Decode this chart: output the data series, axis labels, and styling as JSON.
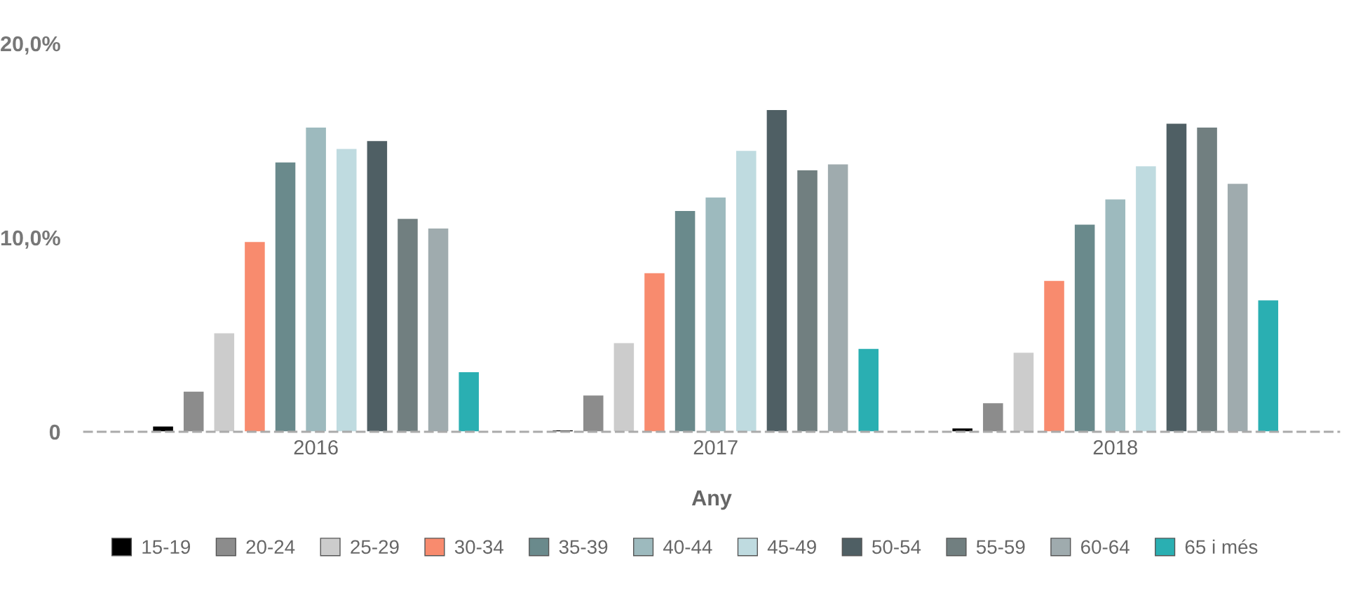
{
  "chart_data": {
    "type": "bar",
    "categories": [
      "2016",
      "2017",
      "2018"
    ],
    "xlabel": "Any",
    "series": [
      {
        "name": "15-19",
        "color": "#000000",
        "values": [
          0.3,
          0.1,
          0.2
        ]
      },
      {
        "name": "20-24",
        "color": "#8c8c8c",
        "values": [
          2.1,
          1.9,
          1.5
        ]
      },
      {
        "name": "25-29",
        "color": "#cccccc",
        "values": [
          5.1,
          4.6,
          4.1
        ]
      },
      {
        "name": "30-34",
        "color": "#f88b6e",
        "values": [
          9.8,
          8.2,
          7.8
        ]
      },
      {
        "name": "35-39",
        "color": "#6a8a8c",
        "values": [
          13.9,
          11.4,
          10.7
        ]
      },
      {
        "name": "40-44",
        "color": "#9dbabe",
        "values": [
          15.7,
          12.1,
          12.0
        ]
      },
      {
        "name": "45-49",
        "color": "#bfdbe0",
        "values": [
          14.6,
          14.5,
          13.7
        ]
      },
      {
        "name": "50-54",
        "color": "#4f5f64",
        "values": [
          15.0,
          16.6,
          15.9
        ]
      },
      {
        "name": "55-59",
        "color": "#717f80",
        "values": [
          11.0,
          13.5,
          15.7
        ]
      },
      {
        "name": "60-64",
        "color": "#9fabae",
        "values": [
          10.5,
          13.8,
          12.8
        ]
      },
      {
        "name": "65 i més",
        "color": "#2aafb2",
        "values": [
          3.1,
          4.3,
          6.8
        ]
      }
    ],
    "ylim": [
      0,
      20
    ],
    "yticks": [
      0,
      {
        "value": 10,
        "label": "10,0%"
      },
      {
        "value": 20,
        "label": "20,0%"
      }
    ],
    "grid": false,
    "legend": "bottom"
  }
}
